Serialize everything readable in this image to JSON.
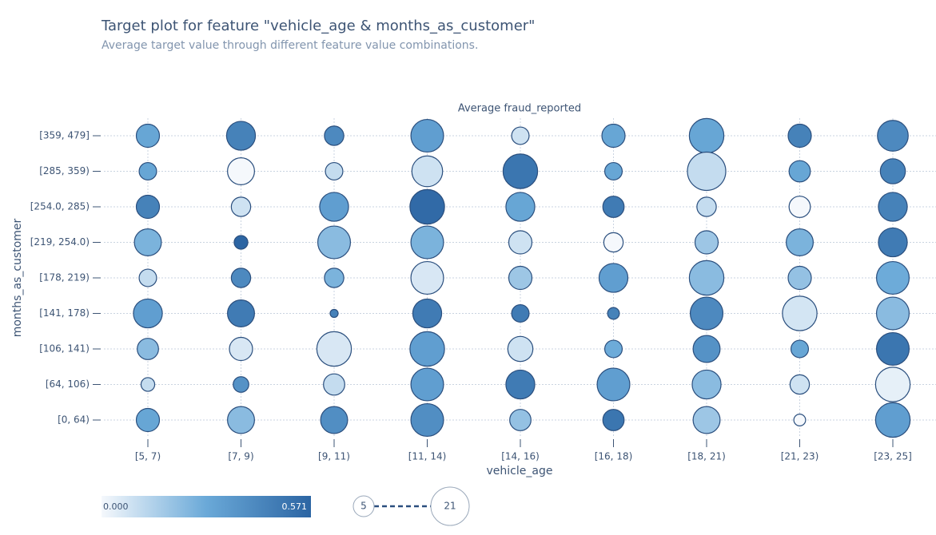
{
  "chart_data": {
    "type": "bubble-grid",
    "title": "Target plot for feature \"vehicle_age & months_as_customer\"",
    "subtitle": "Average target value through different feature value combinations.",
    "plot_label": "Average fraud_reported",
    "x_label": "vehicle_age",
    "y_label": "months_as_customer",
    "x_categories": [
      "[5, 7)",
      "[7, 9)",
      "[9, 11)",
      "[11, 14)",
      "[14, 16)",
      "[16, 18)",
      "[18, 21)",
      "[21, 23)",
      "[23, 25]"
    ],
    "y_categories": [
      "[359, 479]",
      "[285, 359)",
      "[254.0, 285)",
      "[219, 254.0)",
      "[178, 219)",
      "[141, 178)",
      "[106, 141)",
      "[64, 106)",
      "[0, 64)"
    ],
    "values": [
      [
        0.3,
        0.45,
        0.42,
        0.33,
        0.08,
        0.3,
        0.3,
        0.45,
        0.42
      ],
      [
        0.3,
        0.0,
        0.1,
        0.08,
        0.5,
        0.3,
        0.1,
        0.3,
        0.45
      ],
      [
        0.45,
        0.08,
        0.33,
        0.55,
        0.3,
        0.48,
        0.1,
        0.0,
        0.45
      ],
      [
        0.25,
        0.571,
        0.22,
        0.25,
        0.08,
        0.0,
        0.18,
        0.25,
        0.48
      ],
      [
        0.1,
        0.42,
        0.25,
        0.06,
        0.18,
        0.33,
        0.22,
        0.2,
        0.28
      ],
      [
        0.33,
        0.48,
        0.45,
        0.48,
        0.48,
        0.45,
        0.42,
        0.07,
        0.22
      ],
      [
        0.22,
        0.06,
        0.06,
        0.33,
        0.08,
        0.28,
        0.38,
        0.3,
        0.5
      ],
      [
        0.1,
        0.38,
        0.1,
        0.33,
        0.48,
        0.33,
        0.22,
        0.08,
        0.03
      ],
      [
        0.3,
        0.22,
        0.4,
        0.4,
        0.2,
        0.5,
        0.18,
        0.0,
        0.33
      ]
    ],
    "sizes": [
      [
        13,
        16,
        11,
        18,
        10,
        13,
        19,
        13,
        17
      ],
      [
        10,
        15,
        10,
        17,
        19,
        10,
        21,
        12,
        14
      ],
      [
        13,
        11,
        16,
        19,
        16,
        12,
        11,
        12,
        16
      ],
      [
        15,
        8,
        18,
        18,
        13,
        11,
        13,
        15,
        16
      ],
      [
        10,
        11,
        11,
        18,
        13,
        16,
        19,
        13,
        18
      ],
      [
        16,
        15,
        5,
        16,
        10,
        7,
        18,
        19,
        18
      ],
      [
        12,
        13,
        19,
        19,
        14,
        10,
        15,
        10,
        18
      ],
      [
        8,
        9,
        12,
        18,
        16,
        18,
        16,
        11,
        19
      ],
      [
        13,
        15,
        15,
        18,
        12,
        12,
        15,
        7,
        19
      ]
    ],
    "colorscale": [
      "#f5f8fc",
      "#6aa9d8",
      "#2c65a3"
    ],
    "colorbar": [
      {
        "value": 0,
        "label": "0.000"
      },
      {
        "value": 0.571,
        "label": "0.571"
      }
    ],
    "size_legend": [
      5,
      21
    ],
    "grid": true
  }
}
